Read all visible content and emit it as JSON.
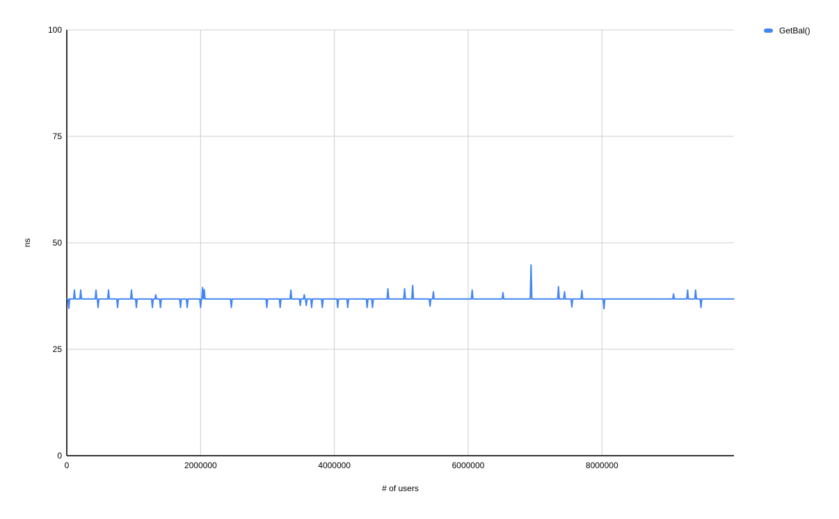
{
  "legend": {
    "label": "GetBal()",
    "swatch_color": "#4285f4"
  },
  "colors": {
    "background": "#ffffff",
    "gridline": "#cccccc",
    "axis": "#333333",
    "text": "#000000",
    "series": "#4285f4"
  },
  "chart_data": {
    "type": "line",
    "title": "",
    "xlabel": "# of users",
    "ylabel": "ns",
    "xlim": [
      0,
      9973000
    ],
    "ylim": [
      0,
      100
    ],
    "grid": true,
    "legend_position": "top-right",
    "x_ticks": [
      {
        "value": 0,
        "label": "0"
      },
      {
        "value": 2000000,
        "label": "2000000"
      },
      {
        "value": 4000000,
        "label": "4000000"
      },
      {
        "value": 6000000,
        "label": "6000000"
      },
      {
        "value": 8000000,
        "label": "8000000"
      }
    ],
    "y_ticks": [
      {
        "value": 0,
        "label": "0"
      },
      {
        "value": 25,
        "label": "25"
      },
      {
        "value": 50,
        "label": "50"
      },
      {
        "value": 75,
        "label": "75"
      },
      {
        "value": 100,
        "label": "100"
      }
    ],
    "series": [
      {
        "name": "GetBal()",
        "color": "#4285f4",
        "baseline": 36.8,
        "x_start": 0,
        "x_end": 9970000,
        "spike_half_width": 12000,
        "spikes": [
          [
            31000,
            34.6
          ],
          [
            114000,
            38.9
          ],
          [
            208000,
            38.9
          ],
          [
            437000,
            38.9
          ],
          [
            468000,
            34.8
          ],
          [
            624000,
            38.9
          ],
          [
            759000,
            34.8
          ],
          [
            967000,
            38.9
          ],
          [
            1040000,
            34.8
          ],
          [
            1280000,
            34.8
          ],
          [
            1330000,
            37.8
          ],
          [
            1400000,
            34.8
          ],
          [
            1700000,
            34.8
          ],
          [
            1800000,
            34.8
          ],
          [
            2000000,
            34.8
          ],
          [
            2030000,
            39.5
          ],
          [
            2055000,
            39.0
          ],
          [
            2460000,
            34.8
          ],
          [
            2990000,
            34.8
          ],
          [
            3190000,
            34.8
          ],
          [
            3350000,
            38.9
          ],
          [
            3490000,
            35.3
          ],
          [
            3550000,
            37.8
          ],
          [
            3580000,
            35.3
          ],
          [
            3660000,
            34.8
          ],
          [
            3820000,
            34.8
          ],
          [
            4050000,
            34.8
          ],
          [
            4200000,
            34.8
          ],
          [
            4490000,
            34.8
          ],
          [
            4570000,
            34.8
          ],
          [
            4800000,
            39.2
          ],
          [
            5050000,
            39.2
          ],
          [
            5170000,
            40.0
          ],
          [
            5430000,
            35.1
          ],
          [
            5480000,
            38.5
          ],
          [
            6060000,
            38.9
          ],
          [
            6520000,
            38.3
          ],
          [
            6940000,
            44.8
          ],
          [
            7350000,
            39.7
          ],
          [
            7440000,
            38.5
          ],
          [
            7550000,
            34.9
          ],
          [
            7700000,
            38.8
          ],
          [
            8030000,
            34.5
          ],
          [
            9070000,
            38.0
          ],
          [
            9280000,
            38.9
          ],
          [
            9400000,
            38.9
          ],
          [
            9480000,
            34.8
          ]
        ]
      }
    ]
  }
}
